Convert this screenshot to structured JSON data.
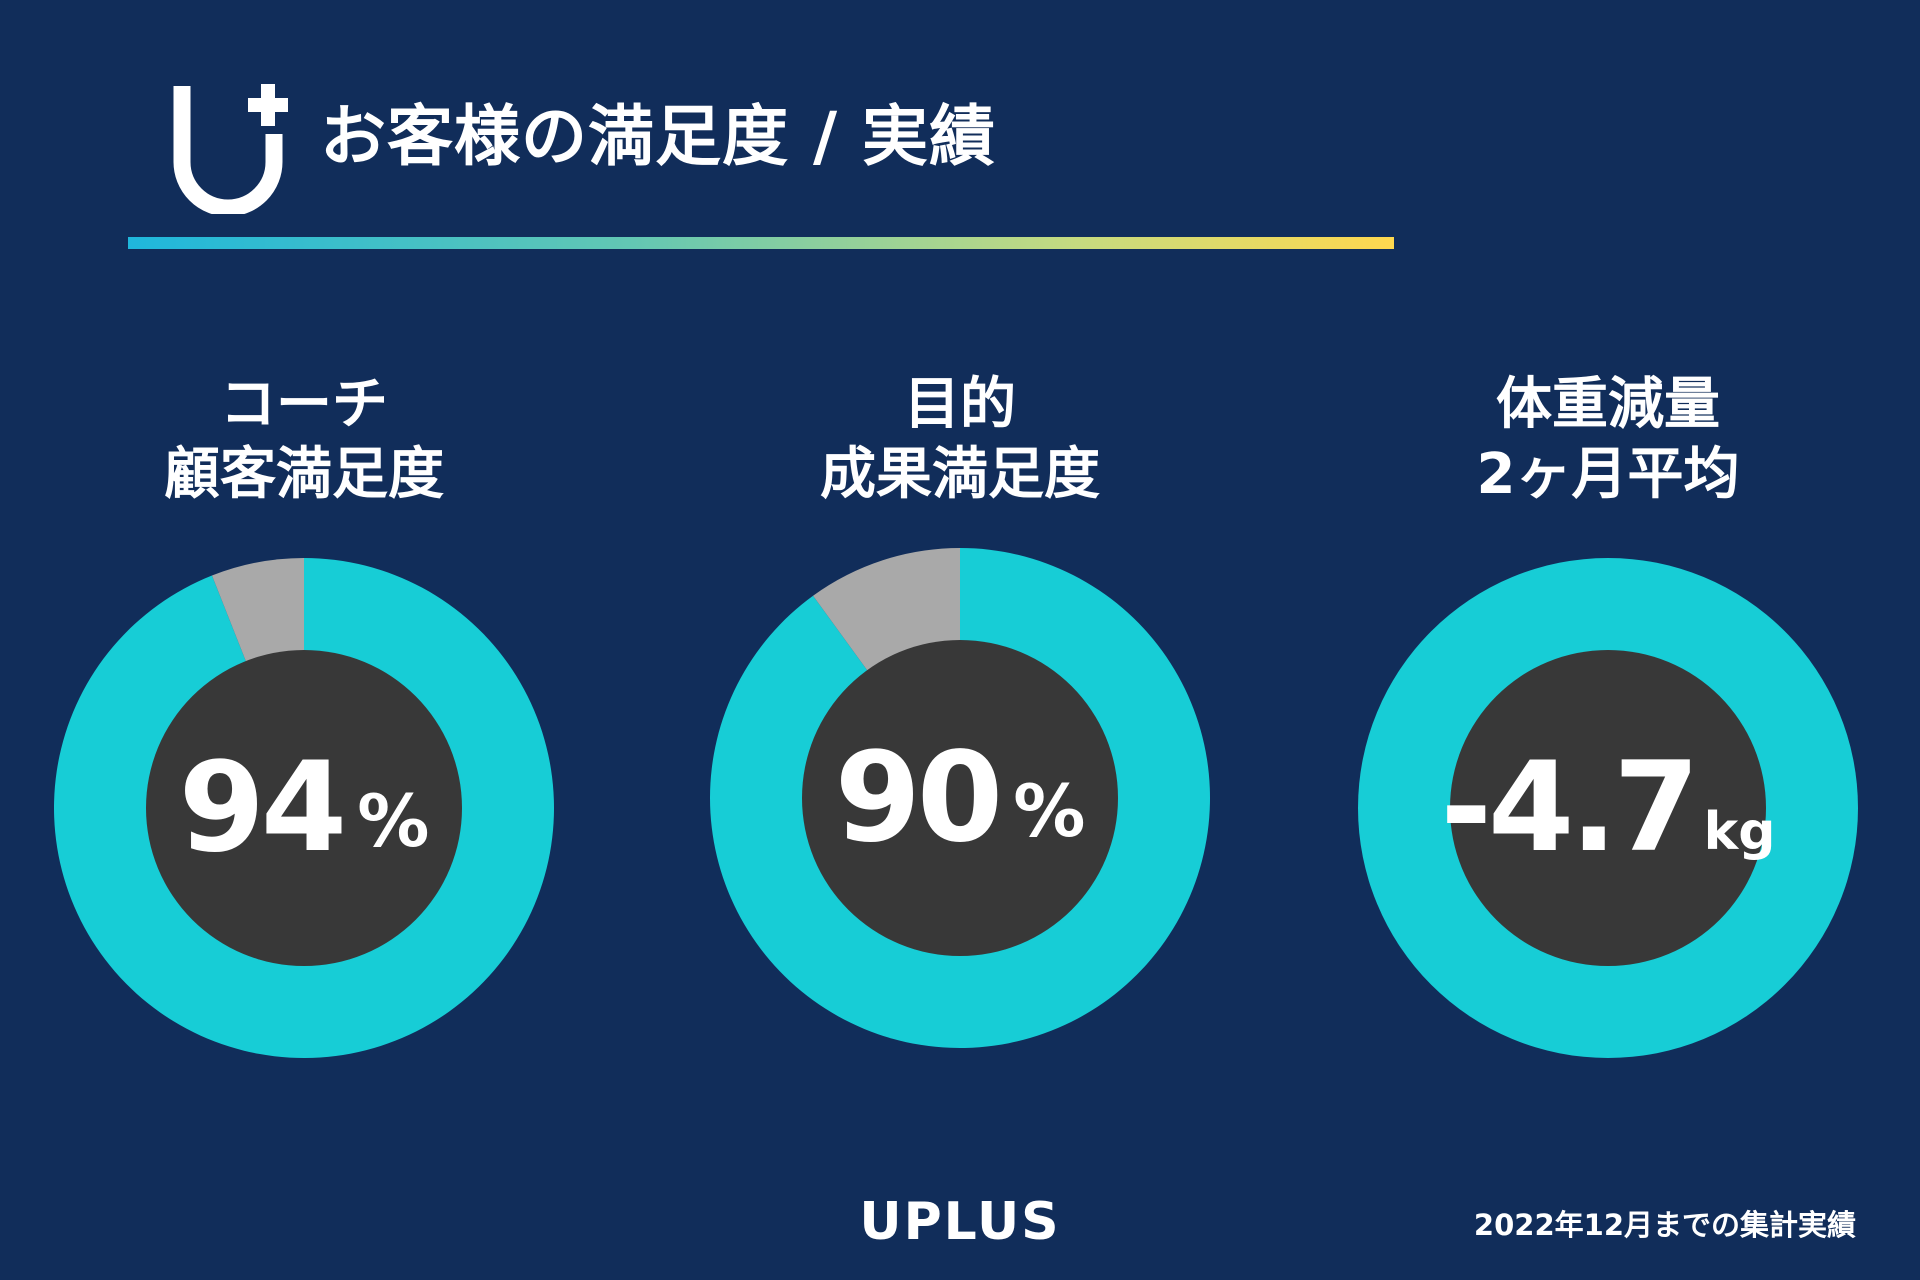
{
  "header": {
    "title": "お客様の満足度 / 実績"
  },
  "colors": {
    "background": "#112d5a",
    "ring": "#17cdd6",
    "remainder": "#a9a9a9",
    "center": "#383838"
  },
  "chart_data": [
    {
      "type": "pie",
      "title": [
        "コーチ",
        "顧客満足度"
      ],
      "values": [
        94,
        6
      ],
      "display_value": "94",
      "unit": "%"
    },
    {
      "type": "pie",
      "title": [
        "目的",
        "成果満足度"
      ],
      "values": [
        90,
        10
      ],
      "display_value": "90",
      "unit": "%"
    },
    {
      "type": "pie",
      "title": [
        "体重減量",
        "2ヶ月平均"
      ],
      "values": [
        100
      ],
      "display_value": "-4.7",
      "unit": "kg"
    }
  ],
  "footer": {
    "brand": "UPLUS",
    "note": "2022年12月までの集計実績"
  }
}
